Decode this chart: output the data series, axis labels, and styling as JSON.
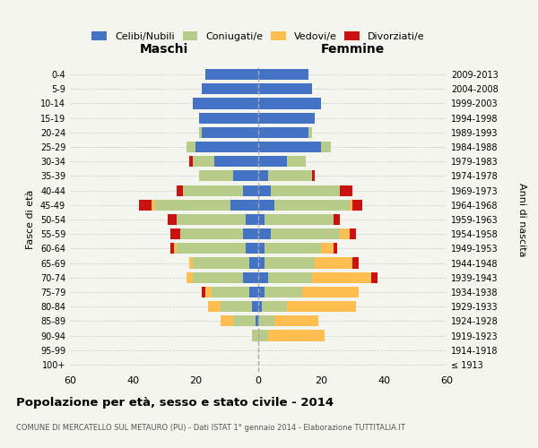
{
  "age_groups": [
    "100+",
    "95-99",
    "90-94",
    "85-89",
    "80-84",
    "75-79",
    "70-74",
    "65-69",
    "60-64",
    "55-59",
    "50-54",
    "45-49",
    "40-44",
    "35-39",
    "30-34",
    "25-29",
    "20-24",
    "15-19",
    "10-14",
    "5-9",
    "0-4"
  ],
  "birth_years": [
    "≤ 1913",
    "1914-1918",
    "1919-1923",
    "1924-1928",
    "1929-1933",
    "1934-1938",
    "1939-1943",
    "1944-1948",
    "1949-1953",
    "1954-1958",
    "1959-1963",
    "1964-1968",
    "1969-1973",
    "1974-1978",
    "1979-1983",
    "1984-1988",
    "1989-1993",
    "1994-1998",
    "1999-2003",
    "2004-2008",
    "2009-2013"
  ],
  "maschi": {
    "celibi": [
      0,
      0,
      0,
      1,
      2,
      3,
      5,
      3,
      4,
      5,
      4,
      9,
      5,
      8,
      14,
      20,
      18,
      19,
      21,
      18,
      17
    ],
    "coniugati": [
      0,
      0,
      2,
      7,
      10,
      12,
      16,
      18,
      22,
      20,
      22,
      24,
      19,
      11,
      7,
      3,
      1,
      0,
      0,
      0,
      0
    ],
    "vedovi": [
      0,
      0,
      0,
      4,
      4,
      2,
      2,
      1,
      1,
      0,
      0,
      1,
      0,
      0,
      0,
      0,
      0,
      0,
      0,
      0,
      0
    ],
    "divorziati": [
      0,
      0,
      0,
      0,
      0,
      1,
      0,
      0,
      1,
      3,
      3,
      4,
      2,
      0,
      1,
      0,
      0,
      0,
      0,
      0,
      0
    ]
  },
  "femmine": {
    "nubili": [
      0,
      0,
      0,
      0,
      1,
      2,
      3,
      2,
      2,
      4,
      2,
      5,
      4,
      3,
      9,
      20,
      16,
      18,
      20,
      17,
      16
    ],
    "coniugate": [
      0,
      0,
      3,
      5,
      8,
      12,
      14,
      16,
      18,
      22,
      22,
      24,
      22,
      14,
      6,
      3,
      1,
      0,
      0,
      0,
      0
    ],
    "vedove": [
      0,
      0,
      18,
      14,
      22,
      18,
      19,
      12,
      4,
      3,
      0,
      1,
      0,
      0,
      0,
      0,
      0,
      0,
      0,
      0,
      0
    ],
    "divorziate": [
      0,
      0,
      0,
      0,
      0,
      0,
      2,
      2,
      1,
      2,
      2,
      3,
      4,
      1,
      0,
      0,
      0,
      0,
      0,
      0,
      0
    ]
  },
  "colors": {
    "celibi": "#4472C4",
    "coniugati": "#B8CC8A",
    "vedovi": "#FFBE4F",
    "divorziati": "#CC1111"
  },
  "xlim": 60,
  "title": "Popolazione per età, sesso e stato civile - 2014",
  "subtitle": "COMUNE DI MERCATELLO SUL METAURO (PU) - Dati ISTAT 1° gennaio 2014 - Elaborazione TUTTITALIA.IT",
  "ylabel_left": "Fasce di età",
  "ylabel_right": "Anni di nascita",
  "xlabel_maschi": "Maschi",
  "xlabel_femmine": "Femmine",
  "bg_color": "#f5f5f0",
  "legend_labels": [
    "Celibi/Nubili",
    "Coniugati/e",
    "Vedovi/e",
    "Divorziati/e"
  ]
}
